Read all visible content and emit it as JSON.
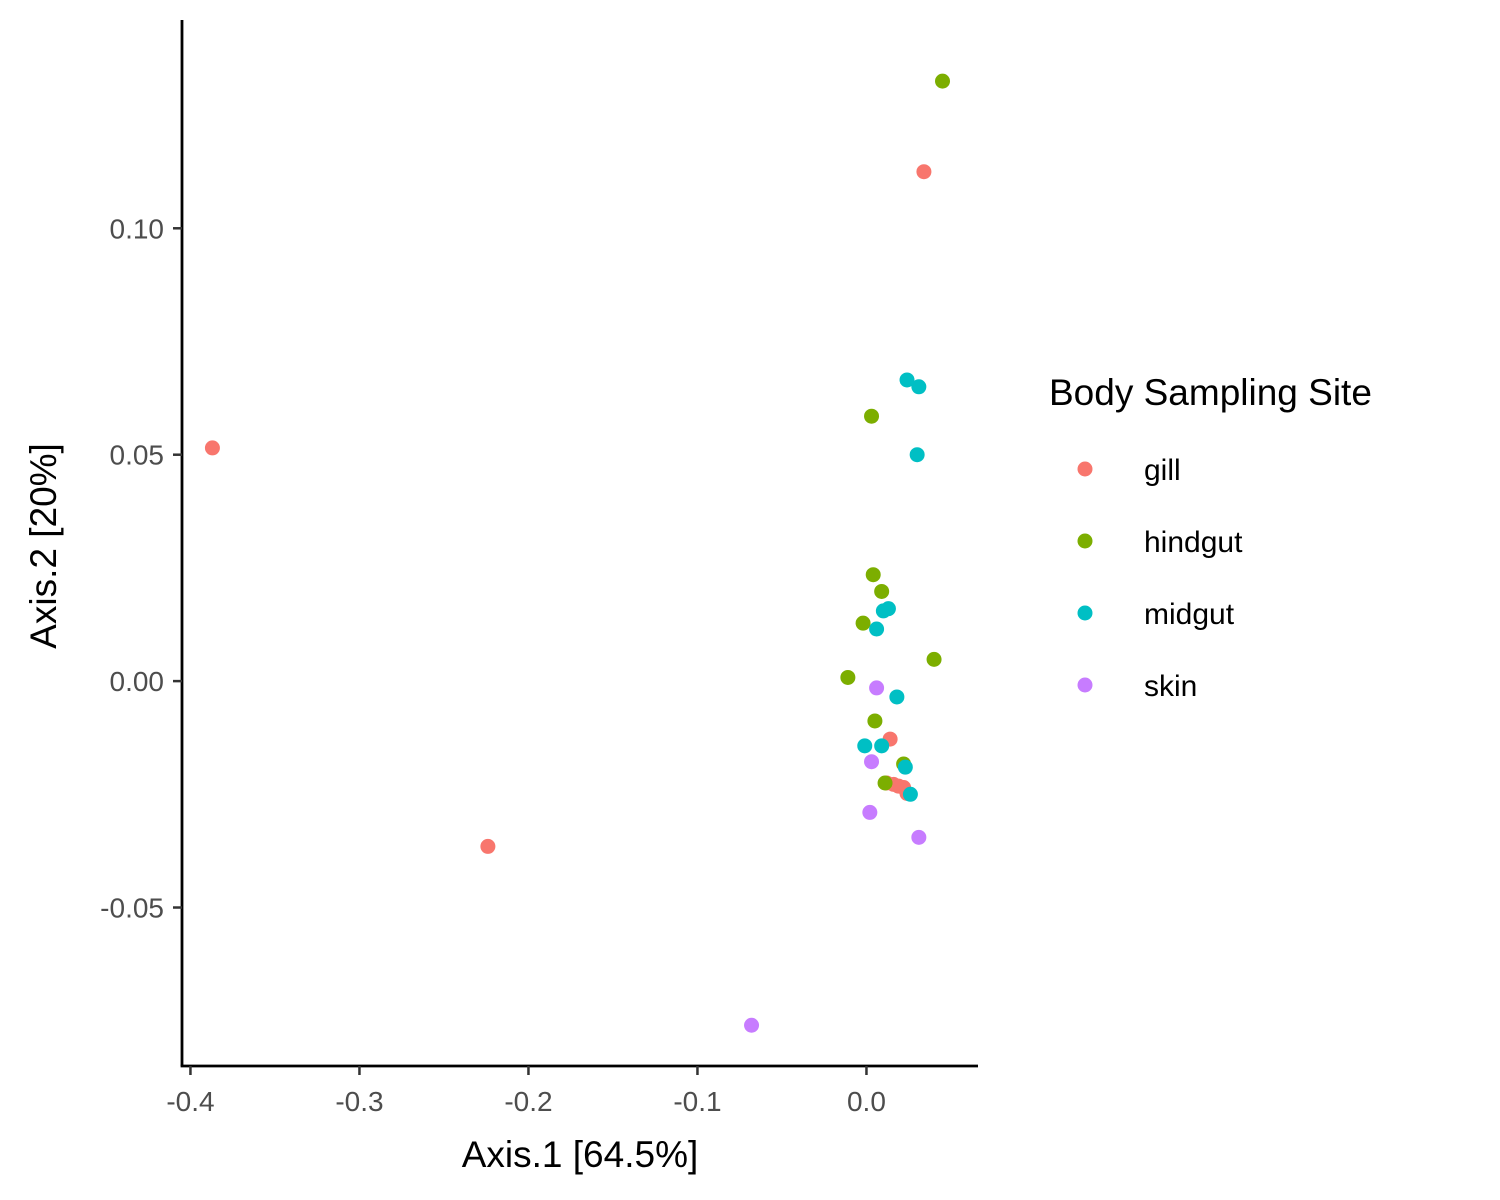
{
  "chart_data": {
    "type": "scatter",
    "xlabel": "Axis.1   [64.5%]",
    "ylabel": "Axis.2   [20%]",
    "xlim": [
      -0.405,
      0.066
    ],
    "ylim": [
      -0.085,
      0.146
    ],
    "xticks": [
      -0.4,
      -0.3,
      -0.2,
      -0.1,
      0.0
    ],
    "xtick_labels": [
      "-0.4",
      "-0.3",
      "-0.2",
      "-0.1",
      "0.0"
    ],
    "yticks": [
      -0.05,
      0.0,
      0.05,
      0.1
    ],
    "ytick_labels": [
      "-0.05",
      "0.00",
      "0.05",
      "0.10"
    ],
    "grid": false,
    "legend": {
      "title": "Body Sampling Site",
      "placement": "right"
    },
    "series": [
      {
        "name": "gill",
        "color": "#F8766D",
        "points": [
          [
            -0.387,
            0.0515
          ],
          [
            -0.224,
            -0.0365
          ],
          [
            0.034,
            0.1125
          ],
          [
            0.014,
            -0.0128
          ],
          [
            0.012,
            -0.0225
          ],
          [
            0.016,
            -0.0228
          ],
          [
            0.019,
            -0.0232
          ],
          [
            0.022,
            -0.0235
          ],
          [
            0.024,
            -0.0248
          ]
        ]
      },
      {
        "name": "hindgut",
        "color": "#7CAE00",
        "points": [
          [
            0.045,
            0.1325
          ],
          [
            0.003,
            0.0585
          ],
          [
            0.004,
            0.0235
          ],
          [
            0.009,
            0.0198
          ],
          [
            -0.002,
            0.0128
          ],
          [
            -0.011,
            0.0008
          ],
          [
            0.04,
            0.0048
          ],
          [
            0.005,
            -0.0088
          ],
          [
            0.022,
            -0.0183
          ],
          [
            0.011,
            -0.0225
          ]
        ]
      },
      {
        "name": "midgut",
        "color": "#00BFC4",
        "points": [
          [
            0.024,
            0.0665
          ],
          [
            0.031,
            0.065
          ],
          [
            0.03,
            0.05
          ],
          [
            0.01,
            0.0155
          ],
          [
            0.013,
            0.016
          ],
          [
            0.006,
            0.0115
          ],
          [
            0.018,
            -0.0035
          ],
          [
            -0.001,
            -0.0143
          ],
          [
            0.009,
            -0.0143
          ],
          [
            0.023,
            -0.019
          ],
          [
            0.026,
            -0.025
          ]
        ]
      },
      {
        "name": "skin",
        "color": "#C77CFF",
        "points": [
          [
            0.006,
            -0.0015
          ],
          [
            0.003,
            -0.0178
          ],
          [
            0.002,
            -0.029
          ],
          [
            0.031,
            -0.0345
          ],
          [
            -0.068,
            -0.076
          ]
        ]
      }
    ]
  }
}
